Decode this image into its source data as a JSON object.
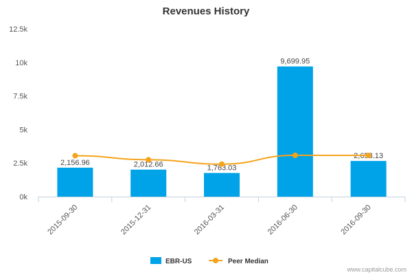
{
  "chart_data": {
    "type": "bar",
    "title": "Revenues History",
    "categories": [
      "2015-09-30",
      "2015-12-31",
      "2016-03-31",
      "2016-06-30",
      "2016-09-30"
    ],
    "series": [
      {
        "name": "EBR-US",
        "type": "bar",
        "color": "#00a2e8",
        "values": [
          2156.96,
          2012.66,
          1763.03,
          9699.95,
          2658.13
        ],
        "labels": [
          "2,156.96",
          "2,012.66",
          "1,763.03",
          "9,699.95",
          "2,658.13"
        ]
      },
      {
        "name": "Peer Median",
        "type": "line",
        "color": "#f5a31a",
        "values": [
          3050,
          2750,
          2420,
          3080,
          3070
        ]
      }
    ],
    "ylim": [
      0,
      12500
    ],
    "yticks": [
      0,
      2500,
      5000,
      7500,
      10000,
      12500
    ],
    "ytick_labels": [
      "0k",
      "2.5k",
      "5k",
      "7.5k",
      "10k",
      "12.5k"
    ],
    "grid": false,
    "legend_position": "bottom-center"
  },
  "watermark": "www.capitalcube.com"
}
